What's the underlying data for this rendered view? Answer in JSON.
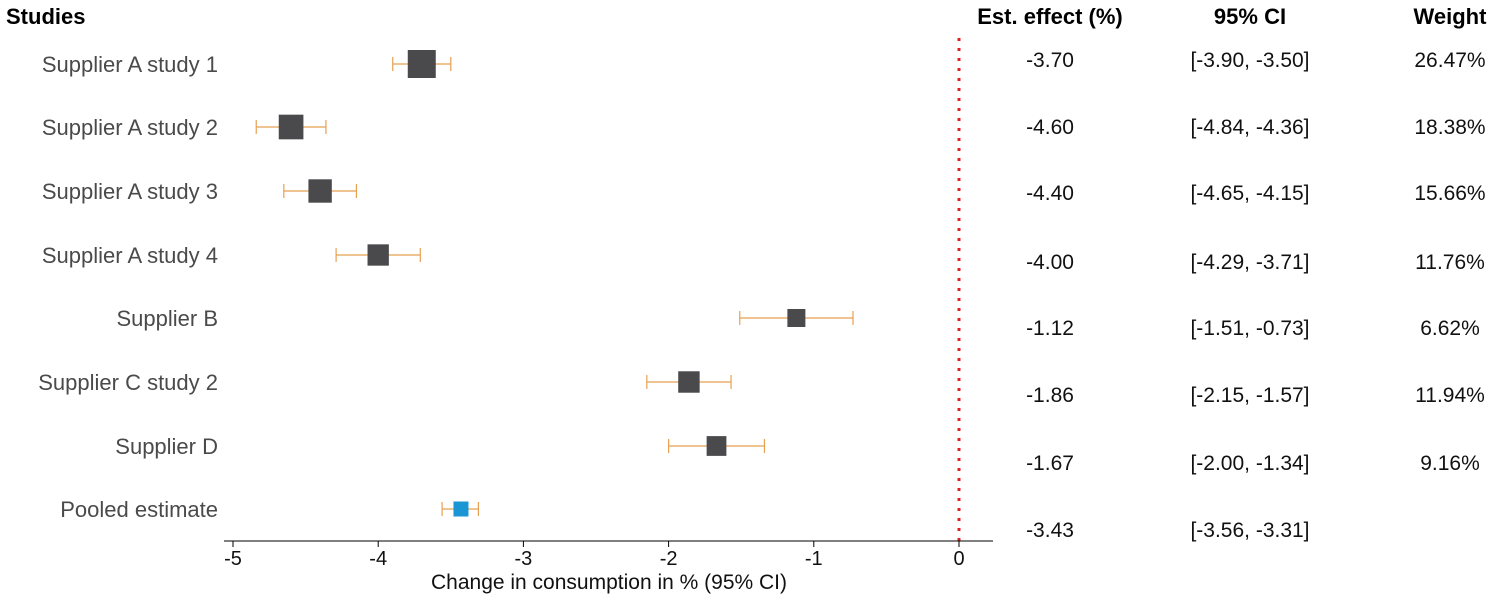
{
  "headers": {
    "studies": "Studies",
    "estimate": "Est. effect (%)",
    "ci": "95% CI",
    "weight": "Weight"
  },
  "chart_data": {
    "type": "forest",
    "xlabel": "Change in consumption in % (95% CI)",
    "xlim": [
      -5,
      0
    ],
    "x_ticks": [
      -5,
      -4,
      -3,
      -2,
      -1,
      0
    ],
    "reference_line": 0,
    "grid": false,
    "colors": {
      "marker": "#4a4a4c",
      "pooled_marker": "#1a96d4",
      "ci_whisker": "#e8a050",
      "reference_line": "#e02020"
    },
    "rows": [
      {
        "study": "Supplier A study 1",
        "estimate": -3.7,
        "lower": -3.9,
        "upper": -3.5,
        "est_label": "-3.70",
        "ci_label": "[-3.90, -3.50]",
        "weight": 26.47,
        "weight_label": "26.47%"
      },
      {
        "study": "Supplier A study 2",
        "estimate": -4.6,
        "lower": -4.84,
        "upper": -4.36,
        "est_label": "-4.60",
        "ci_label": "[-4.84, -4.36]",
        "weight": 18.38,
        "weight_label": "18.38%"
      },
      {
        "study": "Supplier A study 3",
        "estimate": -4.4,
        "lower": -4.65,
        "upper": -4.15,
        "est_label": "-4.40",
        "ci_label": "[-4.65, -4.15]",
        "weight": 15.66,
        "weight_label": "15.66%"
      },
      {
        "study": "Supplier A study 4",
        "estimate": -4.0,
        "lower": -4.29,
        "upper": -3.71,
        "est_label": "-4.00",
        "ci_label": "[-4.29, -3.71]",
        "weight": 11.76,
        "weight_label": "11.76%"
      },
      {
        "study": "Supplier B",
        "estimate": -1.12,
        "lower": -1.51,
        "upper": -0.73,
        "est_label": "-1.12",
        "ci_label": "[-1.51, -0.73]",
        "weight": 6.62,
        "weight_label": "6.62%"
      },
      {
        "study": "Supplier C study 2",
        "estimate": -1.86,
        "lower": -2.15,
        "upper": -1.57,
        "est_label": "-1.86",
        "ci_label": "[-2.15, -1.57]",
        "weight": 11.94,
        "weight_label": "11.94%"
      },
      {
        "study": "Supplier D",
        "estimate": -1.67,
        "lower": -2.0,
        "upper": -1.34,
        "est_label": "-1.67",
        "ci_label": "[-2.00, -1.34]",
        "weight": 9.16,
        "weight_label": "9.16%"
      },
      {
        "study": "Pooled estimate",
        "estimate": -3.43,
        "lower": -3.56,
        "upper": -3.31,
        "est_label": "-3.43",
        "ci_label": "[-3.56, -3.31]",
        "weight": null,
        "weight_label": "",
        "pooled": true
      }
    ]
  }
}
